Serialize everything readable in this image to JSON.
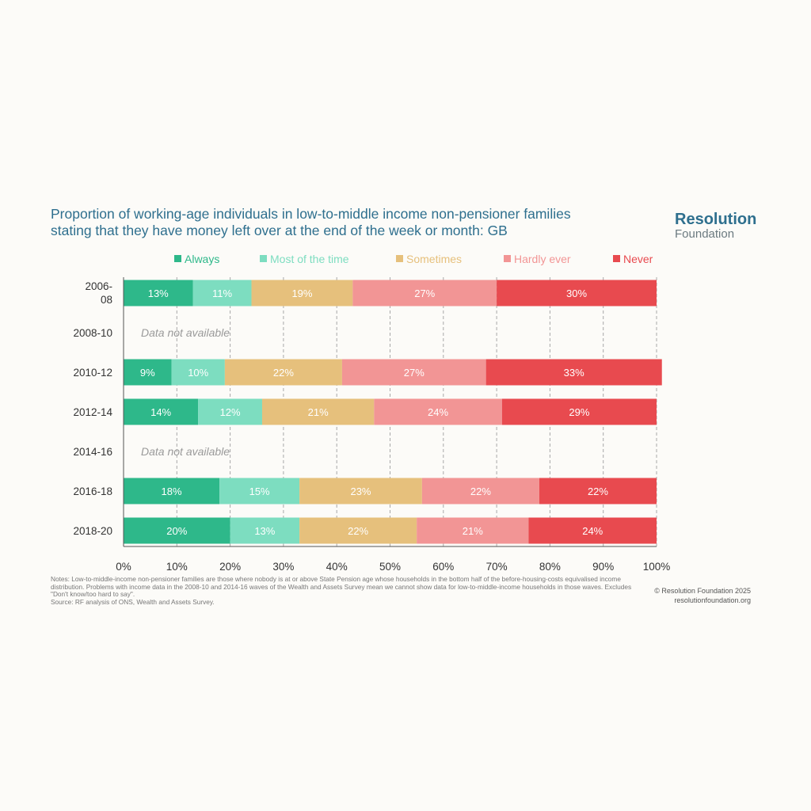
{
  "title": {
    "line1": "Proportion of working-age individuals in low-to-middle income non-pensioner families",
    "line2": "stating that they have money left over at the end of the week or month: GB"
  },
  "logo": {
    "line1": "Resolution",
    "line2": "Foundation"
  },
  "chart_data": {
    "type": "bar",
    "orientation": "horizontal",
    "stacked": true,
    "categories": [
      "2006-08",
      "2008-10",
      "2010-12",
      "2012-14",
      "2014-16",
      "2016-18",
      "2018-20"
    ],
    "category_labels": [
      [
        "2006-",
        "08"
      ],
      [
        "2008-10"
      ],
      [
        "2010-12"
      ],
      [
        "2012-14"
      ],
      [
        "2014-16"
      ],
      [
        "2016-18"
      ],
      [
        "2018-20"
      ]
    ],
    "series": [
      {
        "name": "Always",
        "color": "#2eb88a",
        "values": [
          13,
          null,
          9,
          14,
          null,
          18,
          20
        ],
        "labels": [
          "13%",
          "",
          "9%",
          "14%",
          "",
          "18%",
          "20%"
        ]
      },
      {
        "name": "Most of the time",
        "color": "#7dddc0",
        "values": [
          11,
          null,
          10,
          12,
          null,
          15,
          13
        ],
        "labels": [
          "11%",
          "",
          "10%",
          "12%",
          "",
          "15%",
          "13%"
        ]
      },
      {
        "name": "Sometimes",
        "color": "#e6c07c",
        "values": [
          19,
          null,
          22,
          21,
          null,
          23,
          22
        ],
        "labels": [
          "19%",
          "",
          "22%",
          "21%",
          "",
          "23%",
          "22%"
        ]
      },
      {
        "name": "Hardly ever",
        "color": "#f29595",
        "values": [
          27,
          null,
          27,
          24,
          null,
          22,
          21
        ],
        "labels": [
          "27%",
          "",
          "27%",
          "24%",
          "",
          "22%",
          "21%"
        ]
      },
      {
        "name": "Never",
        "color": "#e84a4f",
        "values": [
          30,
          null,
          33,
          29,
          null,
          22,
          24
        ],
        "labels": [
          "30%",
          "",
          "33%",
          "29%",
          "",
          "22%",
          "24%"
        ]
      }
    ],
    "missing_label": "Data not available",
    "xlim": [
      0,
      100
    ],
    "xticks": [
      0,
      10,
      20,
      30,
      40,
      50,
      60,
      70,
      80,
      90,
      100
    ],
    "xtick_labels": [
      "0%",
      "10%",
      "20%",
      "30%",
      "40%",
      "50%",
      "60%",
      "70%",
      "80%",
      "90%",
      "100%"
    ],
    "grid": true,
    "legend_position": "top"
  },
  "notes": {
    "text": "Notes: Low-to-middle-income non-pensioner families are those where nobody is at or above State Pension age whose households in the bottom half of the before-housing-costs equivalised income distribution. Problems with income data in the 2008-10 and 2014-16 waves of the Wealth and Assets Survey mean we cannot show data for low-to-middle-income households in those waves. Excludes \"Don't know/too hard to say\".",
    "source": "Source: RF analysis of ONS, Wealth and Assets Survey."
  },
  "credits": {
    "copyright": "© Resolution Foundation 2025",
    "url": "resolutionfoundation.org"
  }
}
